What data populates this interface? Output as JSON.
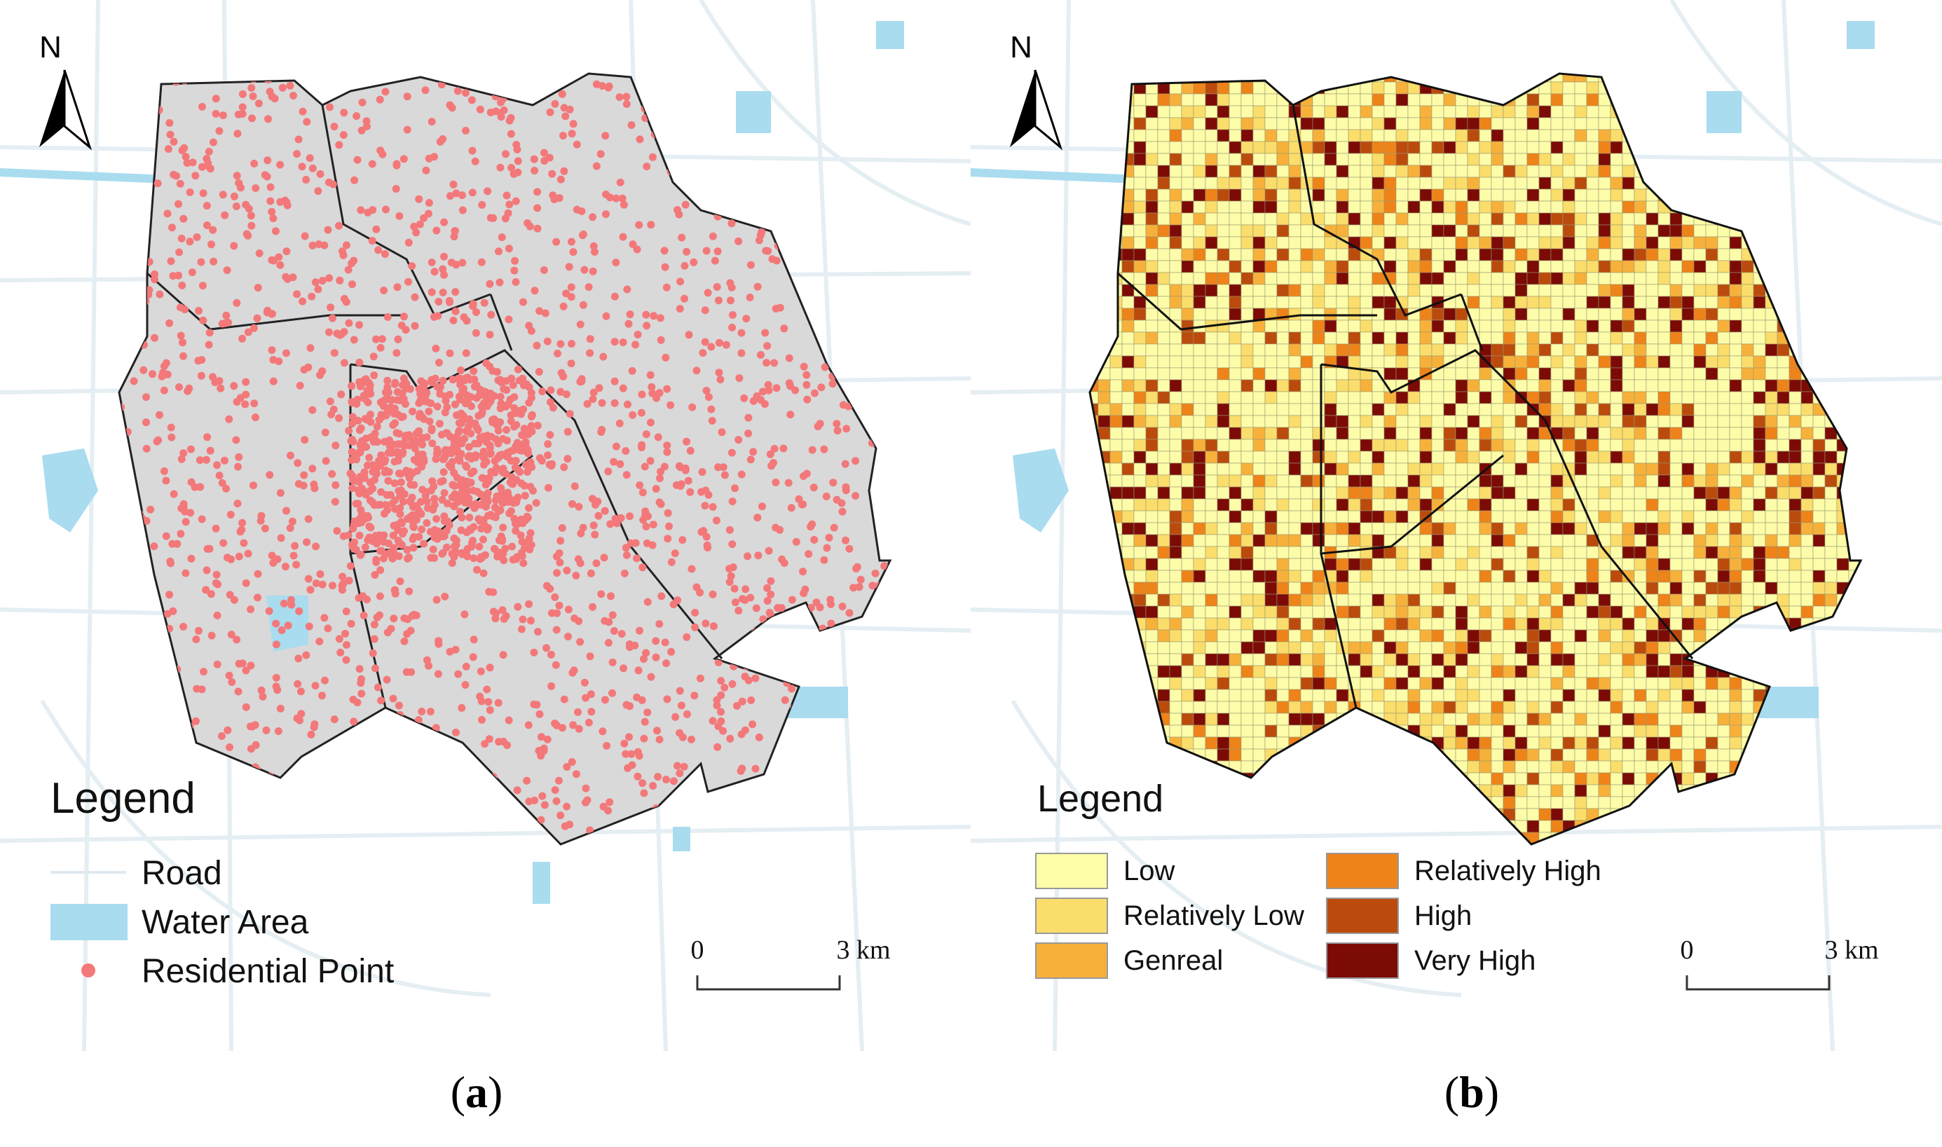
{
  "panels": [
    {
      "id": "a",
      "label": "a",
      "north": "N",
      "legend": {
        "title": "Legend",
        "items": [
          {
            "label": "Road",
            "symbol": "line",
            "color": "#e4eef3"
          },
          {
            "label": "Water Area",
            "symbol": "fill",
            "color": "#a9dcef"
          },
          {
            "label": "Residential Point",
            "symbol": "dot",
            "color": "#f3787a"
          }
        ]
      },
      "scalebar": {
        "start": "0",
        "end": "3 km"
      }
    },
    {
      "id": "b",
      "label": "b",
      "north": "N",
      "legend": {
        "title": "Legend",
        "items": [
          {
            "label": "Low",
            "color": "#fdfca9"
          },
          {
            "label": "Relatively Low",
            "color": "#fbdd6b"
          },
          {
            "label": "Genreal",
            "color": "#f7b13a"
          },
          {
            "label": "Relatively High",
            "color": "#ee8319"
          },
          {
            "label": "High",
            "color": "#bb4b0c"
          },
          {
            "label": "Very High",
            "color": "#7c0b06"
          }
        ]
      },
      "scalebar": {
        "start": "0",
        "end": "3 km"
      }
    }
  ],
  "colors": {
    "district_fill": "#d9d9d9",
    "district_stroke": "#222222",
    "residential_point": "#f3787a",
    "water": "#a9dcef",
    "road": "#e4eef3"
  }
}
